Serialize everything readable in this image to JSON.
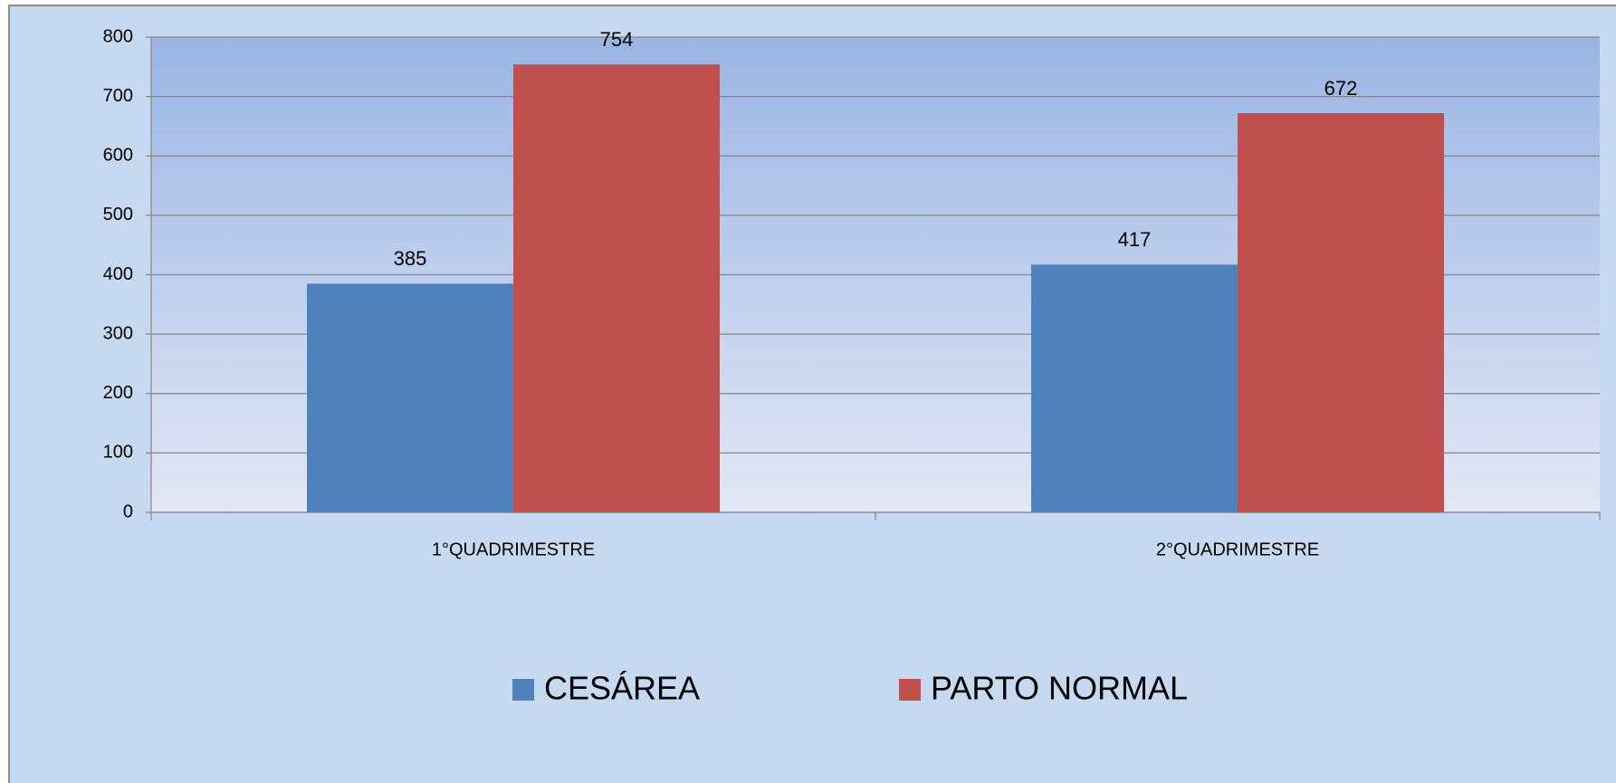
{
  "chart_data": {
    "type": "bar",
    "categories": [
      "1°QUADRIMESTRE",
      "2°QUADRIMESTRE"
    ],
    "series": [
      {
        "name": "CESÁREA",
        "color": "#4f81bd",
        "values": [
          385,
          417
        ]
      },
      {
        "name": "PARTO NORMAL",
        "color": "#c0504d",
        "values": [
          754,
          672
        ]
      }
    ],
    "ylim": [
      0,
      800
    ],
    "yticks": [
      0,
      100,
      200,
      300,
      400,
      500,
      600,
      700,
      800
    ],
    "grid": true,
    "legend": "bottom"
  }
}
